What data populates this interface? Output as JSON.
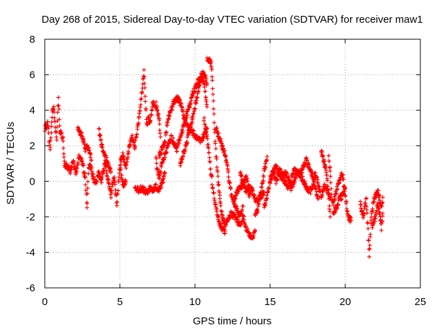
{
  "chart_data": {
    "type": "scatter",
    "title": "Day 268 of 2015, Sidereal Day-to-day VTEC variation (SDTVAR) for receiver maw1",
    "xlabel": "GPS time / hours",
    "ylabel": "SDTVAR / TECUs",
    "xlim": [
      0,
      25
    ],
    "ylim": [
      -6,
      8
    ],
    "xticks": [
      0,
      5,
      10,
      15,
      20,
      25
    ],
    "yticks": [
      -6,
      -4,
      -2,
      0,
      2,
      4,
      6,
      8
    ],
    "xtick_labels": [
      "0",
      "5",
      "10",
      "15",
      "20",
      "25"
    ],
    "ytick_labels": [
      "-6",
      "-4",
      "-2",
      "0",
      "2",
      "4",
      "6",
      "8"
    ],
    "grid": true,
    "marker": "+",
    "series_color": "#ff0000",
    "series": [
      {
        "name": "maw1",
        "segments": [
          {
            "x": [
              0.0,
              0.2,
              0.35,
              0.5,
              0.6,
              0.7,
              0.8,
              0.9,
              1.0,
              1.1,
              1.2,
              1.3,
              1.5,
              1.7,
              1.9,
              2.1,
              2.3,
              2.5,
              2.7,
              2.8,
              2.9,
              3.0,
              3.2,
              3.4,
              3.6,
              3.8,
              4.0,
              4.2,
              4.4,
              4.6,
              4.8,
              5.0,
              5.2,
              5.4
            ],
            "y": [
              2.9,
              3.3,
              1.7,
              3.9,
              4.2,
              3.0,
              2.5,
              4.8,
              2.8,
              2.6,
              2.4,
              1.0,
              0.8,
              0.6,
              1.2,
              0.5,
              1.5,
              1.0,
              0.2,
              -1.5,
              0.5,
              1.0,
              0.3,
              -0.2,
              0.5,
              0.0,
              1.2,
              0.2,
              -0.8,
              0.3,
              -1.2,
              0.8,
              -0.2,
              0.0
            ]
          },
          {
            "x": [
              2.2,
              2.5,
              2.7,
              2.9,
              3.1
            ],
            "y": [
              3.0,
              2.5,
              1.8,
              2.0,
              1.2
            ]
          },
          {
            "x": [
              3.6,
              3.8,
              4.0,
              4.2,
              4.4
            ],
            "y": [
              3.0,
              2.0,
              1.5,
              1.0,
              0.5
            ]
          },
          {
            "x": [
              5.0,
              5.2,
              5.4,
              5.6,
              5.8,
              6.0,
              6.2,
              6.4,
              6.6,
              6.7,
              6.8,
              6.9,
              7.0,
              7.2,
              7.4,
              7.6,
              7.7
            ],
            "y": [
              1.0,
              1.5,
              0.8,
              1.8,
              2.5,
              2.0,
              3.0,
              4.5,
              6.1,
              4.5,
              3.0,
              3.6,
              3.2,
              4.5,
              4.3,
              3.5,
              2.5
            ]
          },
          {
            "x": [
              6.0,
              6.2,
              6.4,
              6.6,
              6.8,
              7.0,
              7.2,
              7.4,
              7.6,
              7.8,
              8.0
            ],
            "y": [
              -0.4,
              -0.5,
              -0.4,
              -0.5,
              -0.6,
              -0.4,
              -0.5,
              -0.3,
              -0.5,
              -0.2,
              0.5
            ]
          },
          {
            "x": [
              7.6,
              7.8,
              8.0,
              8.2,
              8.4,
              8.6,
              8.8,
              9.0,
              9.2,
              9.4,
              9.6,
              9.8,
              10.0,
              10.2,
              10.4,
              10.6,
              10.8
            ],
            "y": [
              1.5,
              1.8,
              2.2,
              3.5,
              4.0,
              4.5,
              4.7,
              4.5,
              3.8,
              3.2,
              3.0,
              2.8,
              2.6,
              2.4,
              2.2,
              2.6,
              3.0
            ]
          },
          {
            "x": [
              7.4,
              7.6,
              7.8,
              8.0,
              8.2,
              8.4,
              8.6,
              8.8,
              9.0,
              9.2,
              9.4,
              9.6,
              9.8,
              10.0,
              10.2,
              10.4,
              10.6,
              10.8
            ],
            "y": [
              1.2,
              0.2,
              1.0,
              1.5,
              2.0,
              2.5,
              2.2,
              1.8,
              2.5,
              3.0,
              3.6,
              4.2,
              4.8,
              5.3,
              5.6,
              5.8,
              5.5,
              4.2
            ]
          },
          {
            "x": [
              9.0,
              9.2,
              9.4,
              9.6,
              9.8,
              10.0,
              10.2,
              10.4,
              10.6,
              10.8
            ],
            "y": [
              1.0,
              1.5,
              2.0,
              2.8,
              3.5,
              4.2,
              5.0,
              6.0,
              6.1,
              5.5
            ]
          },
          {
            "x": [
              10.8,
              10.9,
              11.0,
              11.1,
              11.2,
              11.3,
              11.4,
              11.6,
              11.8,
              12.0,
              12.2,
              12.4,
              12.6,
              12.8,
              13.0,
              13.2,
              13.4,
              13.6,
              13.8,
              14.0
            ],
            "y": [
              6.9,
              6.9,
              6.8,
              6.5,
              5.0,
              3.0,
              1.5,
              -0.5,
              -2.0,
              -2.4,
              -2.2,
              -1.8,
              -2.0,
              -2.2,
              -2.5,
              -2.0,
              -2.6,
              -3.0,
              -3.2,
              -2.8
            ]
          },
          {
            "x": [
              10.6,
              10.8,
              11.0,
              11.2,
              11.4,
              11.6,
              11.8,
              12.0
            ],
            "y": [
              3.5,
              2.5,
              1.0,
              -0.5,
              -1.5,
              -2.3,
              -2.7,
              -2.8
            ]
          },
          {
            "x": [
              11.4,
              11.6,
              11.8,
              12.0,
              12.2,
              12.4,
              12.6,
              12.8,
              13.0,
              13.2
            ],
            "y": [
              3.0,
              2.5,
              2.0,
              1.5,
              0.5,
              -0.6,
              -1.2,
              -1.6,
              -2.0,
              -1.4
            ]
          },
          {
            "x": [
              12.6,
              12.8,
              13.0,
              13.2,
              13.4,
              13.6,
              13.8,
              14.0,
              14.2,
              14.4,
              14.6
            ],
            "y": [
              -1.0,
              -0.6,
              -0.4,
              -0.2,
              0.2,
              -0.3,
              -0.5,
              -1.0,
              -1.0,
              -0.8,
              -0.6
            ]
          },
          {
            "x": [
              13.0,
              13.2,
              13.4,
              13.6,
              13.8
            ],
            "y": [
              0.5,
              0.0,
              -0.5,
              -0.7,
              -0.4
            ]
          },
          {
            "x": [
              14.0,
              14.2,
              14.4,
              14.6,
              14.8
            ],
            "y": [
              -2.0,
              -1.5,
              -0.5,
              0.5,
              1.4
            ]
          },
          {
            "x": [
              14.6,
              14.8,
              15.0,
              15.2,
              15.4,
              15.6,
              15.8,
              16.0,
              16.2,
              16.4,
              16.6,
              16.8,
              17.0,
              17.2,
              17.4,
              17.6,
              17.8,
              18.0,
              18.2,
              18.4,
              18.6,
              18.8,
              19.0
            ],
            "y": [
              -1.5,
              -0.8,
              0.0,
              0.5,
              0.0,
              0.6,
              0.4,
              0.5,
              0.2,
              -0.4,
              0.0,
              0.6,
              0.3,
              0.1,
              -0.3,
              -0.6,
              -0.4,
              0.5,
              -0.2,
              -0.8,
              -0.3,
              -0.4,
              -0.9
            ]
          },
          {
            "x": [
              15.0,
              15.4,
              15.8,
              16.2,
              16.6,
              17.0,
              17.4,
              17.8,
              18.2
            ],
            "y": [
              0.2,
              0.8,
              0.2,
              -0.3,
              0.6,
              0.4,
              1.2,
              0.4,
              -1.0
            ]
          },
          {
            "x": [
              18.4,
              18.6,
              18.8,
              19.0
            ],
            "y": [
              1.8,
              1.0,
              0.2,
              -2.0
            ]
          },
          {
            "x": [
              18.9,
              19.0,
              19.1,
              19.2,
              19.4,
              19.6,
              19.8,
              20.0,
              20.2,
              20.4
            ],
            "y": [
              1.5,
              0.5,
              -1.0,
              -1.2,
              -0.6,
              0.0,
              0.5,
              -0.8,
              -2.0,
              -2.2
            ]
          },
          {
            "x": [
              19.2,
              19.4,
              19.6,
              19.8,
              20.0
            ],
            "y": [
              -1.8,
              -1.5,
              -1.0,
              -0.8,
              -0.4
            ]
          },
          {
            "x": [
              21.0,
              21.2,
              21.4,
              21.5,
              21.6,
              21.7,
              21.8,
              22.0,
              22.2,
              22.4,
              22.5
            ],
            "y": [
              -1.2,
              -2.0,
              -1.0,
              -2.5,
              -4.1,
              -2.5,
              -1.5,
              -0.8,
              -0.6,
              -1.5,
              -0.9
            ]
          },
          {
            "x": [
              21.8,
              22.0,
              22.2,
              22.4,
              22.5
            ],
            "y": [
              -2.5,
              -2.0,
              -1.2,
              -2.6,
              -1.8
            ]
          }
        ]
      }
    ]
  }
}
